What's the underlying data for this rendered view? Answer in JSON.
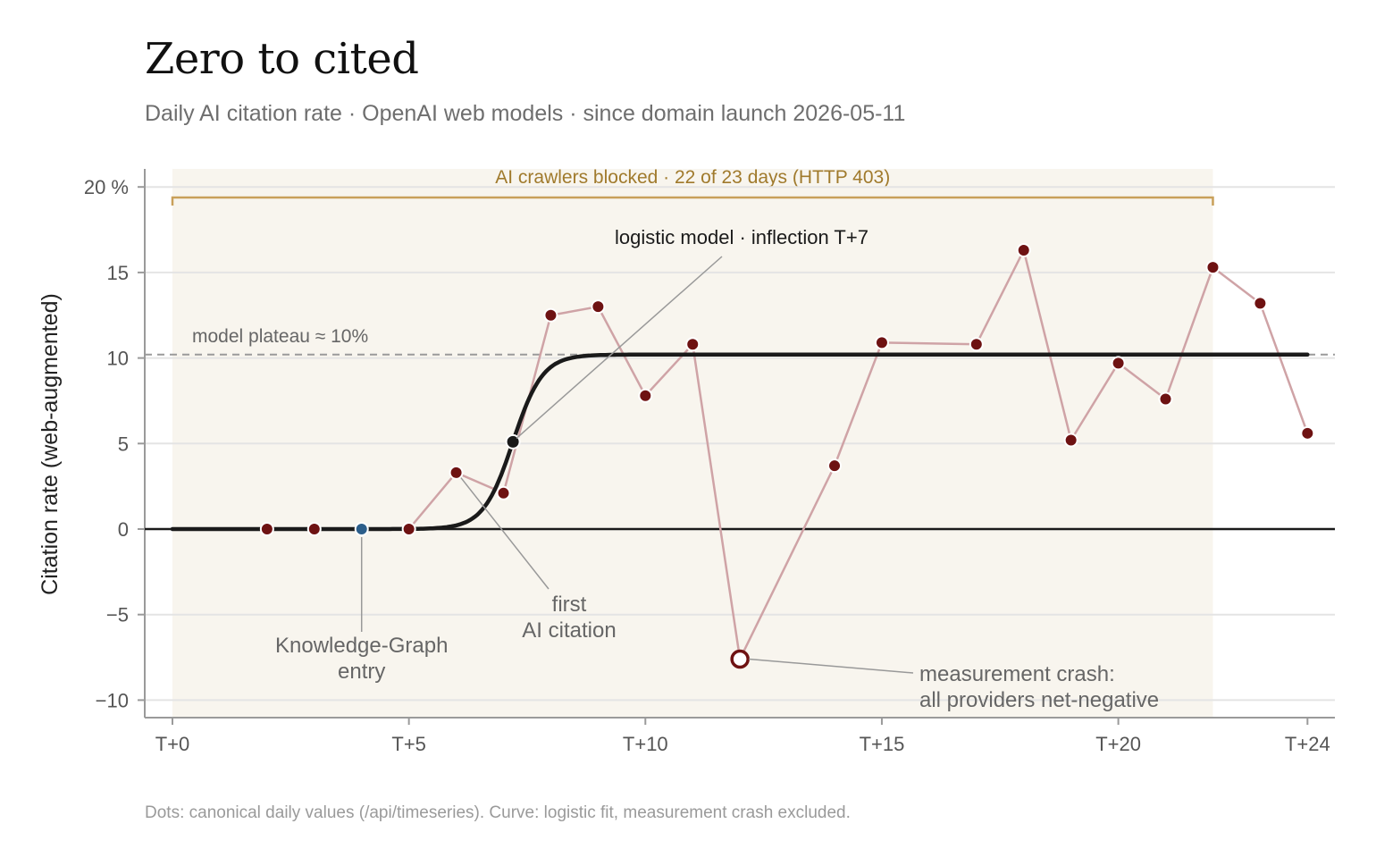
{
  "header": {
    "title": "Zero to cited",
    "subtitle": "Daily AI citation rate · OpenAI web models · since domain launch 2026-05-11"
  },
  "footnote": "Dots: canonical daily values (/api/timeseries). Curve: logistic fit, measurement crash excluded.",
  "colors": {
    "dot": "#6e1212",
    "dot_line": "#cfa3a6",
    "kg_dot": "#2c5e8a",
    "curve": "#1a1a1a",
    "band_fill": "#f8f5ee",
    "band_bracket": "#c9a05a",
    "band_text": "#a07a2c",
    "annotation_text": "#666666",
    "leader_line": "#999999"
  },
  "chart_data": {
    "type": "line",
    "xlabel": "",
    "ylabel": "Citation rate (web-augmented)",
    "xlim": [
      0,
      24
    ],
    "ylim": [
      -11,
      21
    ],
    "x_ticks": [
      0,
      5,
      10,
      15,
      20,
      24
    ],
    "x_tick_labels": [
      "T+0",
      "T+5",
      "T+10",
      "T+15",
      "T+20",
      "T+24"
    ],
    "y_ticks": [
      -10,
      -5,
      0,
      5,
      10,
      15,
      20
    ],
    "y_tick_labels": [
      "−10",
      "−5",
      "0",
      "5",
      "10",
      "15",
      "20 %"
    ],
    "grid": "horizontal",
    "series": [
      {
        "x": [
          2,
          3,
          4,
          5,
          6,
          7,
          8,
          9,
          10,
          11,
          12,
          14,
          15,
          17,
          18,
          19,
          20,
          21,
          22,
          23,
          24
        ],
        "values": [
          0,
          0,
          0,
          0,
          3.3,
          2.1,
          12.5,
          13.0,
          7.8,
          10.8,
          -7.6,
          3.7,
          10.9,
          10.8,
          16.3,
          5.2,
          9.7,
          7.6,
          15.3,
          13.2,
          5.6
        ]
      }
    ],
    "special_points": {
      "knowledge_graph": {
        "x": 4,
        "y": 0
      },
      "inflection": {
        "x": 7.2,
        "y": 5.1
      },
      "crash": {
        "x": 12,
        "y": -7.6
      }
    },
    "logistic_model": {
      "L": 10.2,
      "x0": 7.2,
      "k": 3.2,
      "x_start": 0,
      "x_end": 24
    },
    "plateau": {
      "y": 10.2,
      "label": "model plateau ≈ 10%"
    },
    "blocked_band": {
      "x_start": 0,
      "x_end": 22,
      "label": "AI crawlers blocked · 22 of 23 days (HTTP 403)"
    },
    "annotations": {
      "logistic": "logistic model · inflection T+7",
      "first_citation": [
        "first",
        "AI citation"
      ],
      "knowledge_graph": [
        "Knowledge-Graph",
        "entry"
      ],
      "crash": [
        "measurement crash:",
        "all providers net-negative"
      ]
    }
  }
}
